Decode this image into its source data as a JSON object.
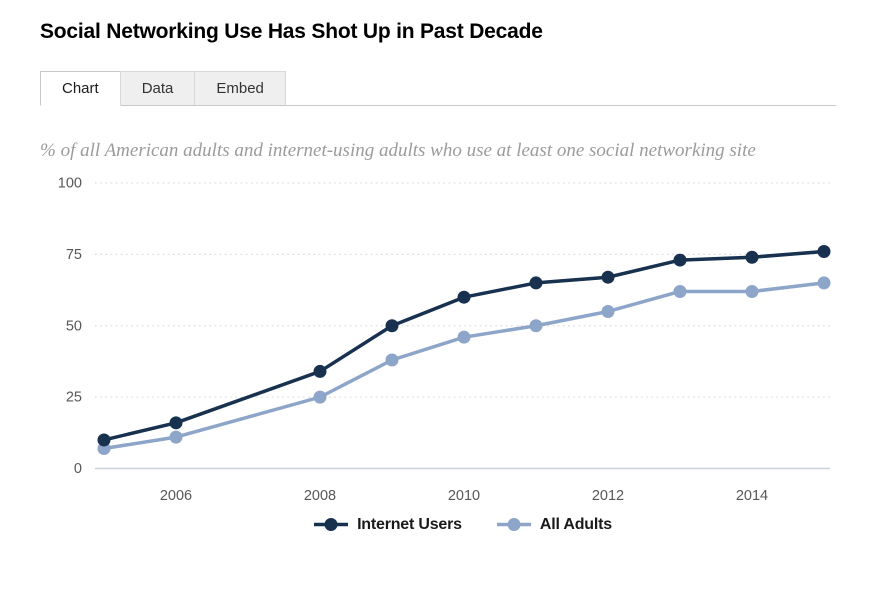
{
  "page_title": "Social Networking Use Has Shot Up in Past Decade",
  "tabs": [
    {
      "label": "Chart",
      "active": true
    },
    {
      "label": "Data",
      "active": false
    },
    {
      "label": "Embed",
      "active": false
    }
  ],
  "subtitle": "% of all American adults and internet-using adults who use at least one social networking site",
  "chart_data": {
    "type": "line",
    "title": "Social Networking Use Has Shot Up in Past Decade",
    "subtitle": "% of all American adults and internet-using adults who use at least one social networking site",
    "x": [
      2005,
      2006,
      2008,
      2009,
      2010,
      2011,
      2012,
      2013,
      2014,
      2015
    ],
    "series": [
      {
        "name": "Internet Users",
        "color": "#17314f",
        "values": [
          10,
          16,
          34,
          50,
          60,
          65,
          67,
          73,
          74,
          76
        ]
      },
      {
        "name": "All Adults",
        "color": "#8da5c9",
        "values": [
          7,
          11,
          25,
          38,
          46,
          50,
          55,
          62,
          62,
          65
        ]
      }
    ],
    "xticks": [
      2006,
      2008,
      2010,
      2012,
      2014
    ],
    "yticks": [
      0,
      25,
      50,
      75,
      100
    ],
    "ylim": [
      0,
      100
    ],
    "xlabel": "",
    "ylabel": "",
    "grid": "horizontal-dotted",
    "legend_position": "bottom",
    "colors": {
      "gridline": "#dcdcdc",
      "axis_line": "#c8d2df",
      "tick_text": "#58585b"
    }
  }
}
